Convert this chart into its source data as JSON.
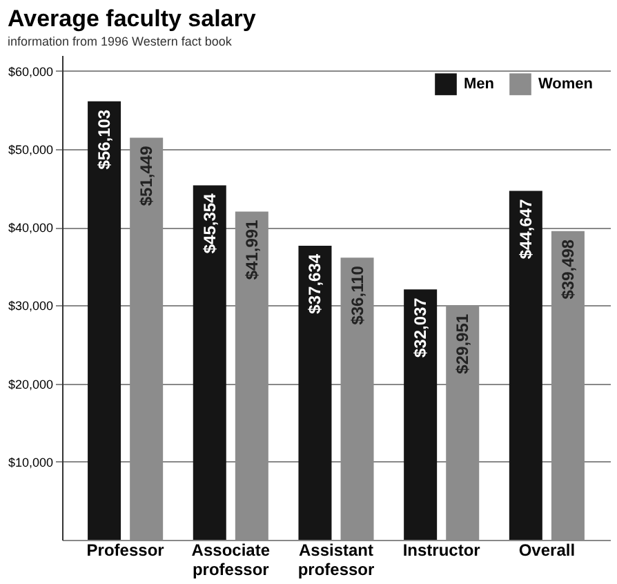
{
  "chart_data": {
    "type": "bar",
    "title": "Average faculty salary",
    "subtitle": "information from 1996 Western fact book",
    "categories": [
      "Professor",
      "Associate professor",
      "Assistant professor",
      "Instructor",
      "Overall"
    ],
    "series": [
      {
        "name": "Men",
        "color": "#151515",
        "values": [
          56103,
          45354,
          37634,
          32037,
          44647
        ],
        "value_labels": [
          "$56,103",
          "$45,354",
          "$37,634",
          "$32,037",
          "$44,647"
        ]
      },
      {
        "name": "Women",
        "color": "#8c8c8c",
        "values": [
          51449,
          41991,
          36110,
          29951,
          39498
        ],
        "value_labels": [
          "$51,449",
          "$41,991",
          "$36,110",
          "$29,951",
          "$39,498"
        ]
      }
    ],
    "ylim": [
      0,
      62000
    ],
    "yticks": [
      {
        "value": 10000,
        "label": "$10,000"
      },
      {
        "value": 20000,
        "label": "$20,000"
      },
      {
        "value": 30000,
        "label": "$30,000"
      },
      {
        "value": 40000,
        "label": "$40,000"
      },
      {
        "value": 50000,
        "label": "$50,000"
      },
      {
        "value": 60000,
        "label": "$60,000"
      }
    ],
    "grid": "y",
    "legend": "top right"
  }
}
